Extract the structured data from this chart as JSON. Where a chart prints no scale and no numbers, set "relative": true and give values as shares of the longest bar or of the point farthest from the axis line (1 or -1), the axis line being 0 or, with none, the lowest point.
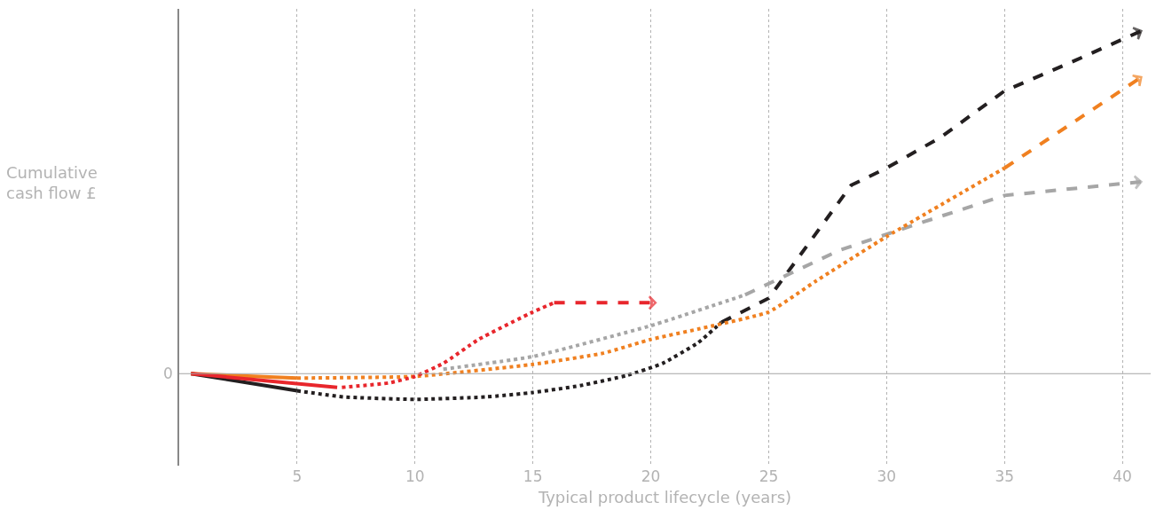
{
  "chart_data": {
    "type": "line",
    "relative": true,
    "xlabel": "Typical product lifecycle (years)",
    "annotations": [
      "Cumulative\ncash flow £"
    ],
    "xlim": [
      0,
      41.2
    ],
    "xticks": [
      5,
      10,
      15,
      20,
      25,
      30,
      35,
      40
    ],
    "grid": "x",
    "ref_lines": [
      {
        "axis": "y",
        "value": 0,
        "label": "0",
        "color": "#a6a6a6"
      }
    ],
    "series": [
      {
        "color": "#231f20",
        "line_style": "solid",
        "x": [
          0.5,
          5
        ],
        "values": [
          0,
          -0.05
        ]
      },
      {
        "color": "#231f20",
        "line_style": "dotted",
        "x": [
          5,
          7,
          10,
          13,
          15,
          17,
          19,
          20.5,
          22,
          23
        ],
        "values": [
          -0.05,
          -0.068,
          -0.075,
          -0.068,
          -0.055,
          -0.035,
          -0.005,
          0.03,
          0.09,
          0.15
        ]
      },
      {
        "color": "#231f20",
        "line_style": "dashed",
        "x": [
          23,
          25,
          28.5,
          30,
          32.3,
          35,
          38,
          40.8
        ],
        "values": [
          0.15,
          0.22,
          0.55,
          0.6,
          0.69,
          0.825,
          0.914,
          1.0
        ]
      },
      {
        "color": "#a6a6a6",
        "line_style": "dotted",
        "x": [
          11.2,
          15,
          20,
          24
        ],
        "values": [
          0.013,
          0.05,
          0.14,
          0.23
        ]
      },
      {
        "color": "#a6a6a6",
        "line_style": "dashed",
        "x": [
          24,
          28,
          31,
          35,
          40.8
        ],
        "values": [
          0.23,
          0.36,
          0.43,
          0.52,
          0.56
        ]
      },
      {
        "color": "#f08020",
        "line_style": "solid",
        "x": [
          0.5,
          5
        ],
        "values": [
          0,
          -0.013
        ]
      },
      {
        "color": "#f08020",
        "line_style": "dotted",
        "x": [
          5,
          10,
          15,
          18,
          20,
          22,
          25,
          27,
          30,
          35
        ],
        "values": [
          -0.013,
          -0.008,
          0.027,
          0.06,
          0.1,
          0.13,
          0.18,
          0.27,
          0.4,
          0.6
        ]
      },
      {
        "color": "#f08020",
        "line_style": "dashed",
        "x": [
          35,
          40.8
        ],
        "values": [
          0.6,
          0.865
        ]
      },
      {
        "color": "#e8262c",
        "line_style": "solid",
        "x": [
          0.5,
          6.7
        ],
        "values": [
          0,
          -0.04
        ]
      },
      {
        "color": "#e8262c",
        "line_style": "dotted",
        "x": [
          6.9,
          8.9,
          10,
          11.2,
          12.7,
          15,
          15.9
        ],
        "values": [
          -0.04,
          -0.027,
          -0.008,
          0.03,
          0.1,
          0.18,
          0.207
        ]
      },
      {
        "color": "#e8262c",
        "line_style": "dashed",
        "x": [
          15.9,
          20.2
        ],
        "values": [
          0.207,
          0.207
        ]
      }
    ]
  }
}
